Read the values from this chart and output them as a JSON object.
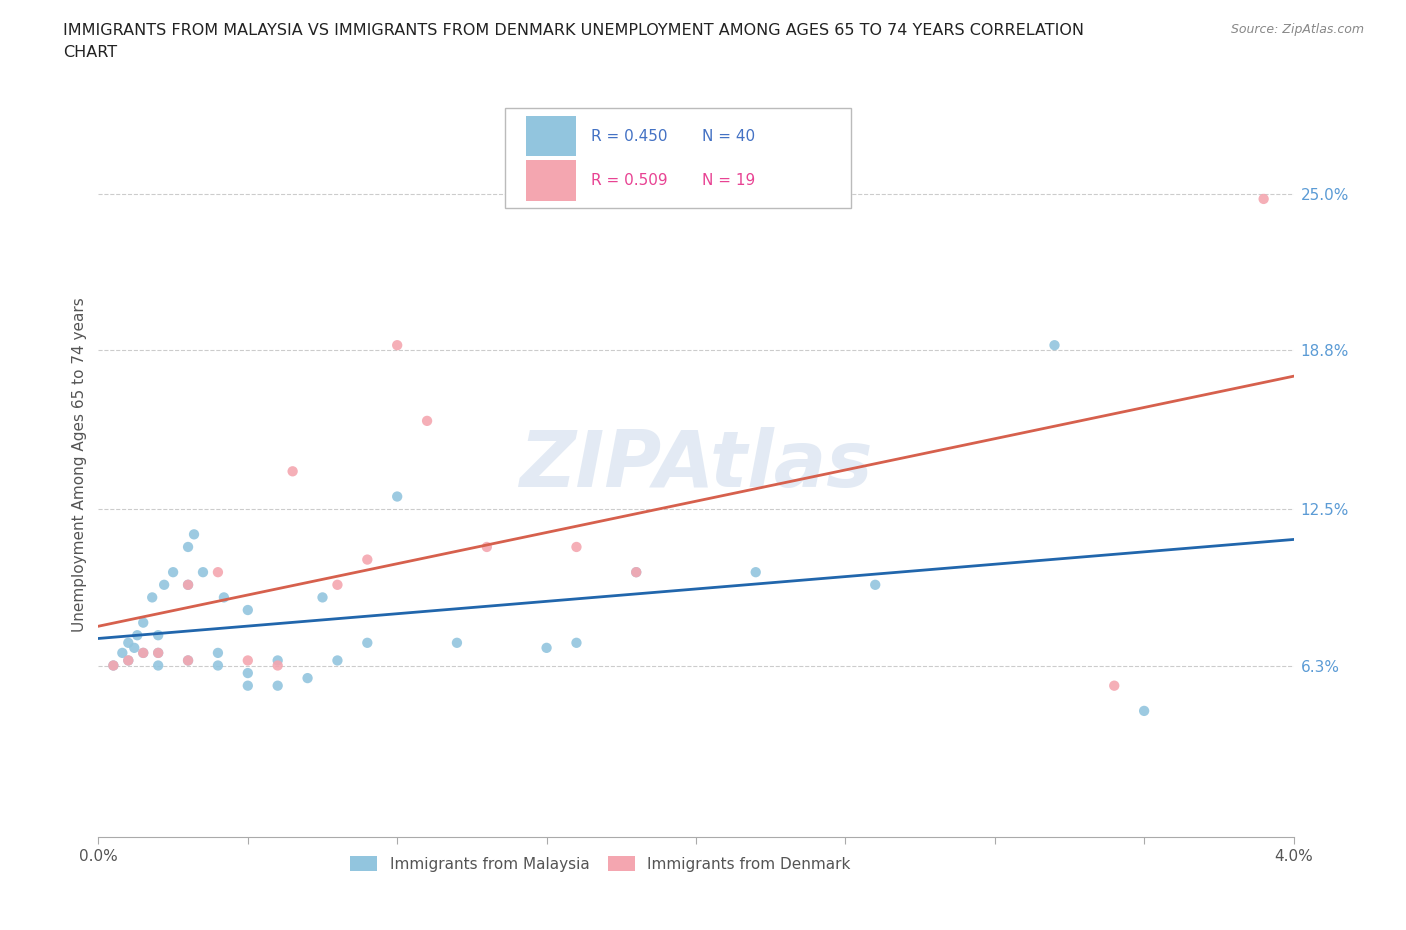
{
  "title_line1": "IMMIGRANTS FROM MALAYSIA VS IMMIGRANTS FROM DENMARK UNEMPLOYMENT AMONG AGES 65 TO 74 YEARS CORRELATION",
  "title_line2": "CHART",
  "source": "Source: ZipAtlas.com",
  "ylabel": "Unemployment Among Ages 65 to 74 years",
  "xlim": [
    0.0,
    0.04
  ],
  "ylim": [
    -0.005,
    0.29
  ],
  "xticks": [
    0.0,
    0.005,
    0.01,
    0.015,
    0.02,
    0.025,
    0.03,
    0.035,
    0.04
  ],
  "xticklabels": [
    "0.0%",
    "",
    "",
    "",
    "",
    "",
    "",
    "",
    "4.0%"
  ],
  "ytick_labels_right": [
    "6.3%",
    "12.5%",
    "18.8%",
    "25.0%"
  ],
  "ytick_vals_right": [
    0.063,
    0.125,
    0.188,
    0.25
  ],
  "watermark": "ZIPAtlas",
  "malaysia_color": "#92c5de",
  "denmark_color": "#f4a6b0",
  "malaysia_line_color": "#2166ac",
  "denmark_line_color": "#d6604d",
  "legend_R_malaysia": "R = 0.450",
  "legend_N_malaysia": "N = 40",
  "legend_R_denmark": "R = 0.509",
  "legend_N_denmark": "N = 19",
  "malaysia_color_legend": "#4472c4",
  "denmark_color_legend": "#e84393",
  "malaysia_x": [
    0.0005,
    0.0008,
    0.001,
    0.001,
    0.0012,
    0.0013,
    0.0015,
    0.0015,
    0.0018,
    0.002,
    0.002,
    0.002,
    0.0022,
    0.0025,
    0.003,
    0.003,
    0.003,
    0.0032,
    0.0035,
    0.004,
    0.004,
    0.0042,
    0.005,
    0.005,
    0.005,
    0.006,
    0.006,
    0.007,
    0.0075,
    0.008,
    0.009,
    0.01,
    0.012,
    0.015,
    0.016,
    0.018,
    0.022,
    0.026,
    0.032,
    0.035
  ],
  "malaysia_y": [
    0.063,
    0.068,
    0.065,
    0.072,
    0.07,
    0.075,
    0.068,
    0.08,
    0.09,
    0.063,
    0.068,
    0.075,
    0.095,
    0.1,
    0.065,
    0.095,
    0.11,
    0.115,
    0.1,
    0.063,
    0.068,
    0.09,
    0.055,
    0.06,
    0.085,
    0.055,
    0.065,
    0.058,
    0.09,
    0.065,
    0.072,
    0.13,
    0.072,
    0.07,
    0.072,
    0.1,
    0.1,
    0.095,
    0.19,
    0.045
  ],
  "denmark_x": [
    0.0005,
    0.001,
    0.0015,
    0.002,
    0.003,
    0.003,
    0.004,
    0.005,
    0.006,
    0.0065,
    0.008,
    0.009,
    0.01,
    0.011,
    0.013,
    0.016,
    0.018,
    0.034,
    0.039
  ],
  "denmark_y": [
    0.063,
    0.065,
    0.068,
    0.068,
    0.065,
    0.095,
    0.1,
    0.065,
    0.063,
    0.14,
    0.095,
    0.105,
    0.19,
    0.16,
    0.11,
    0.11,
    0.1,
    0.055,
    0.248
  ],
  "grid_yticks": [
    0.063,
    0.125,
    0.188,
    0.25
  ],
  "background_color": "#ffffff"
}
